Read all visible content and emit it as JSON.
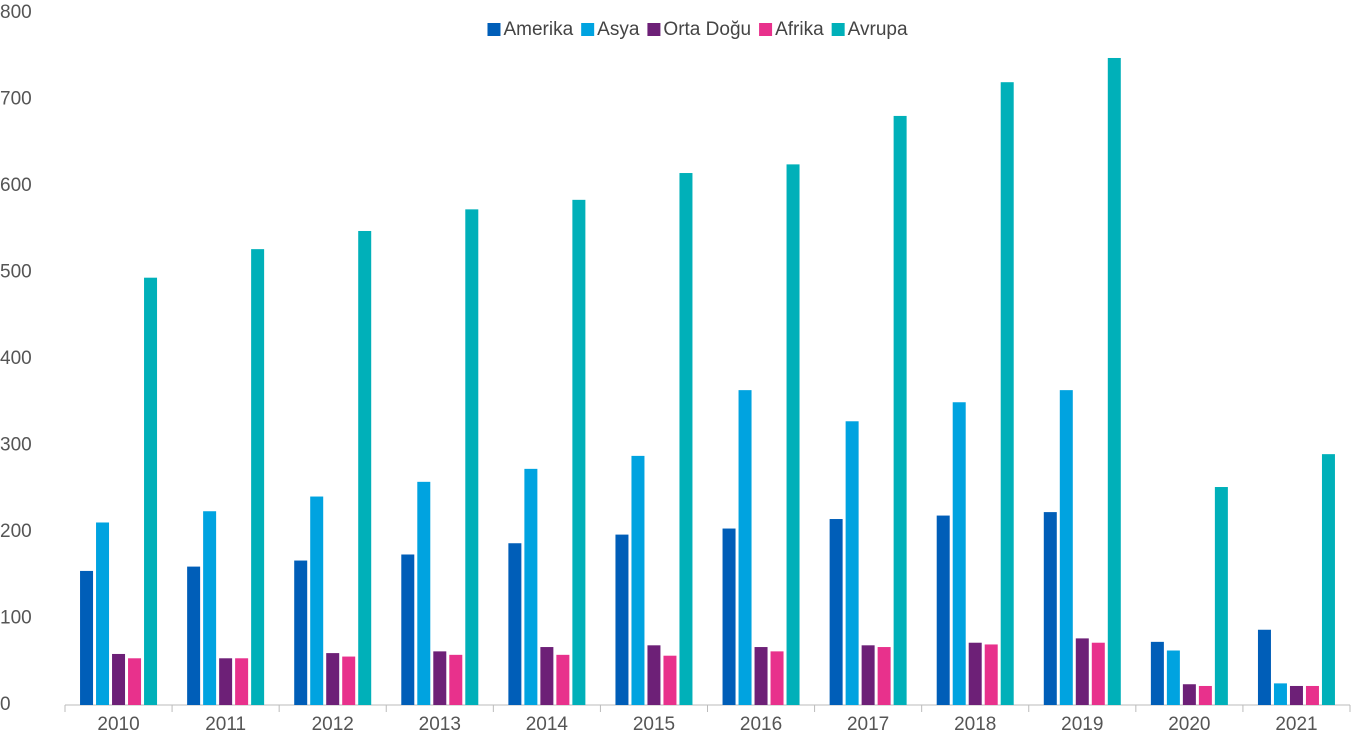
{
  "chart_data": {
    "type": "bar",
    "categories": [
      "2010",
      "2011",
      "2012",
      "2013",
      "2014",
      "2015",
      "2016",
      "2017",
      "2018",
      "2019",
      "2020",
      "2021"
    ],
    "series": [
      {
        "name": "Amerika",
        "color": "#005eb8",
        "values": [
          155,
          160,
          167,
          174,
          187,
          197,
          204,
          215,
          219,
          223,
          73,
          87
        ]
      },
      {
        "name": "Asya",
        "color": "#00a3e0",
        "values": [
          211,
          224,
          241,
          258,
          273,
          288,
          364,
          328,
          350,
          364,
          63,
          25
        ]
      },
      {
        "name": "Orta Doğu",
        "color": "#6d2077",
        "values": [
          59,
          54,
          60,
          62,
          67,
          69,
          67,
          69,
          72,
          77,
          24,
          22
        ]
      },
      {
        "name": "Afrika",
        "color": "#e8318c",
        "values": [
          54,
          54,
          56,
          58,
          58,
          57,
          62,
          67,
          70,
          72,
          22,
          22
        ]
      },
      {
        "name": "Avrupa",
        "color": "#00b0b9",
        "values": [
          494,
          527,
          548,
          573,
          584,
          615,
          625,
          681,
          720,
          748,
          252,
          290
        ]
      }
    ],
    "ylim": [
      0,
      800
    ],
    "yticks": [
      0,
      100,
      200,
      300,
      400,
      500,
      600,
      700,
      800
    ],
    "grid": false,
    "legend": "top"
  }
}
